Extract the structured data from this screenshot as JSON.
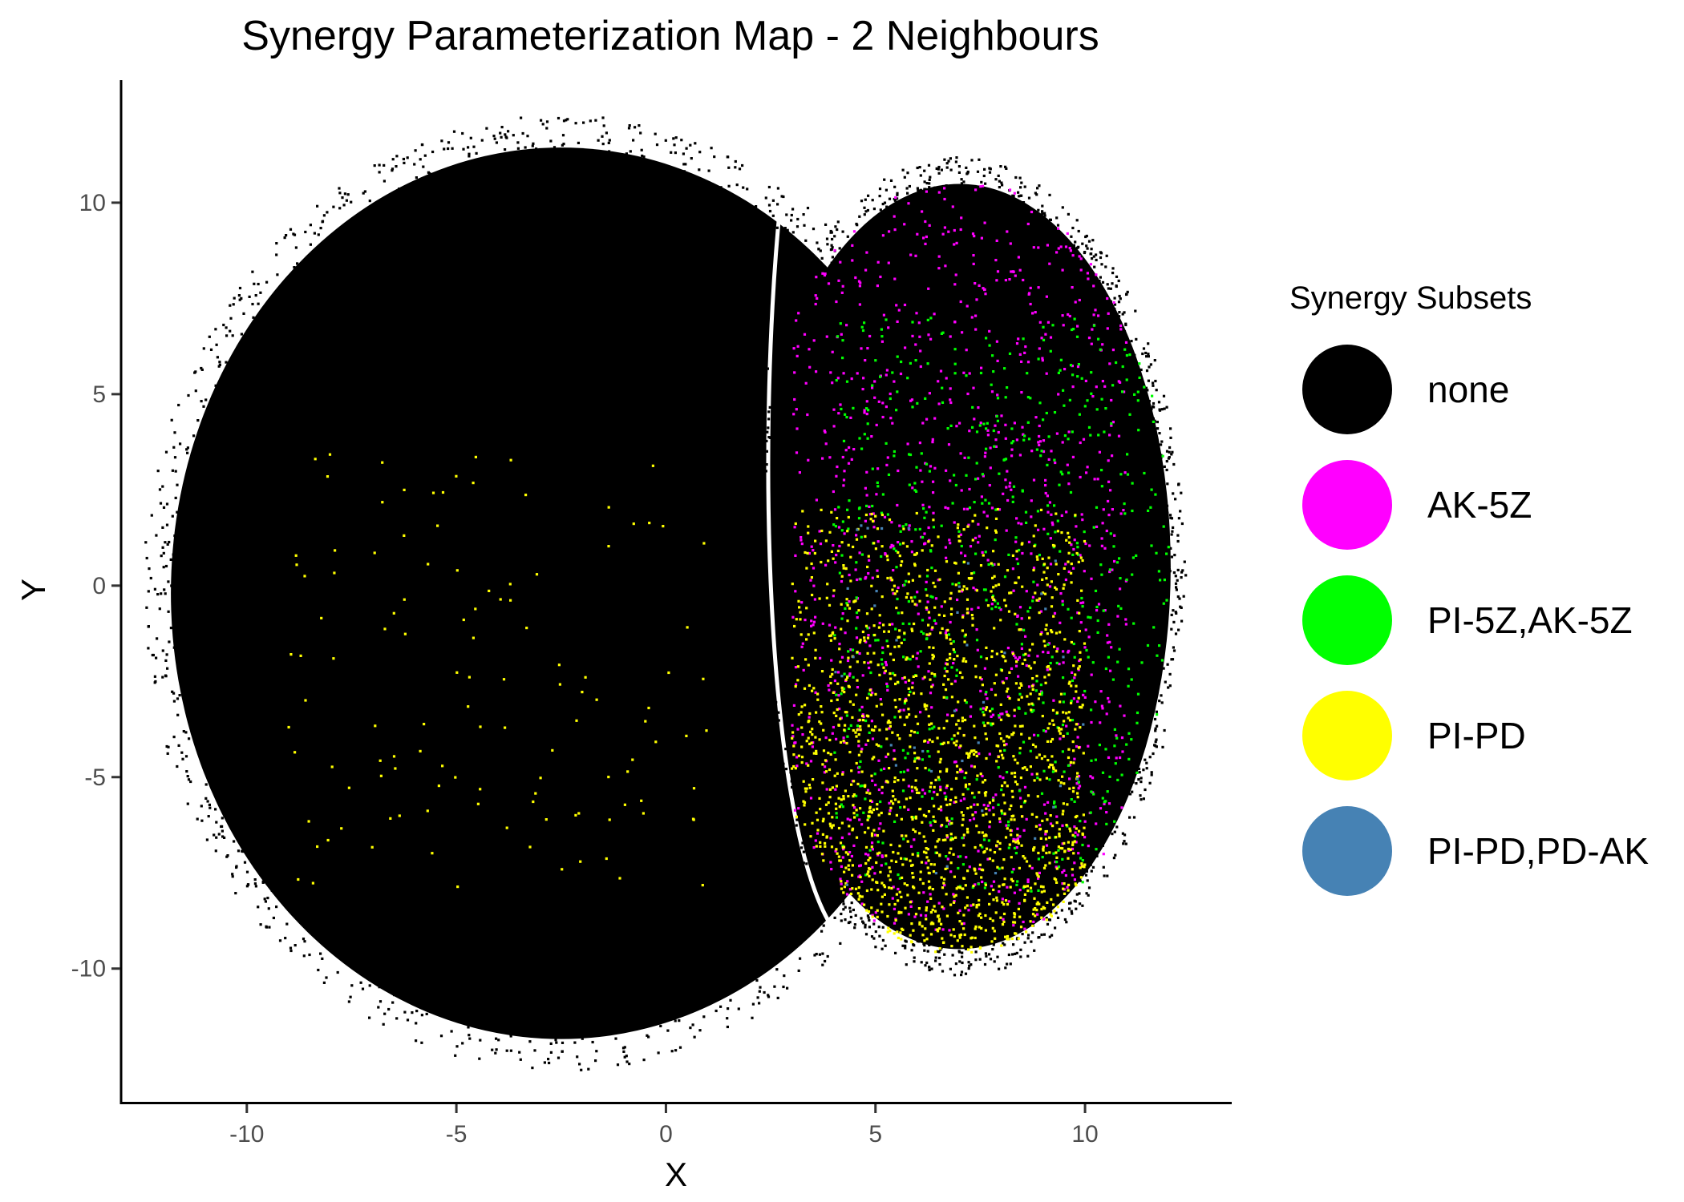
{
  "chart_data": {
    "type": "scatter",
    "title": "Synergy Parameterization Map - 2 Neighbours",
    "xlabel": "X",
    "ylabel": "Y",
    "xlim": [
      -13,
      13.5
    ],
    "ylim": [
      -13.5,
      13.2
    ],
    "x_ticks": [
      -10,
      -5,
      0,
      5,
      10
    ],
    "y_ticks": [
      -10,
      -5,
      0,
      5,
      10
    ],
    "x_tick_labels": [
      "-10",
      "-5",
      "0",
      "5",
      "10"
    ],
    "y_tick_labels": [
      "-10",
      "-5",
      "0",
      "5",
      "10"
    ],
    "grid": false,
    "legend_position": "right",
    "legend_title": "Synergy Subsets",
    "series": [
      {
        "name": "none",
        "color": "#000000",
        "cluster_left": {
          "center": [
            -2.5,
            -0.2
          ],
          "radius_x": 9.6,
          "radius_y": 12.0
        },
        "cluster_right": {
          "center": [
            7.0,
            0.5
          ],
          "radius_x": 5.2,
          "radius_y": 10.3
        }
      },
      {
        "name": "AK-5Z",
        "color": "#ff00ff",
        "region": {
          "x": [
            3.0,
            11.0
          ],
          "y": [
            -9.0,
            10.5
          ]
        }
      },
      {
        "name": "PI-5Z,AK-5Z",
        "color": "#00ff00",
        "region": {
          "x": [
            4.0,
            12.0
          ],
          "y": [
            -8.0,
            7.0
          ]
        }
      },
      {
        "name": "PI-PD",
        "color": "#ffff00",
        "region": {
          "x": [
            3.0,
            10.0
          ],
          "y": [
            -10.3,
            2.0
          ]
        }
      },
      {
        "name": "PI-PD,PD-AK",
        "color": "#4682b4",
        "region": {
          "x": [
            4.0,
            10.0
          ],
          "y": [
            -8.0,
            2.0
          ]
        }
      }
    ]
  }
}
